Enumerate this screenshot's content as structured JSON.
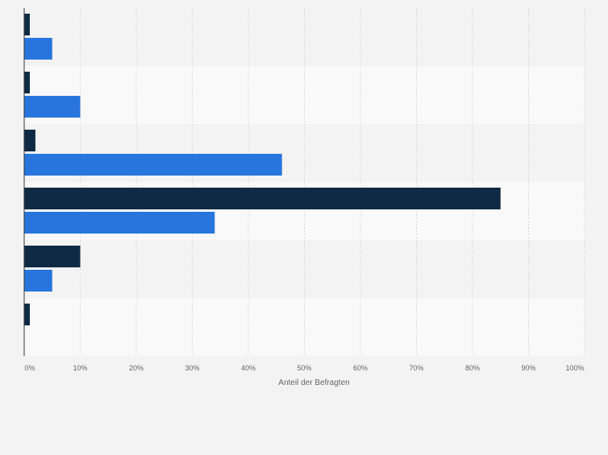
{
  "chart_data": {
    "type": "bar",
    "orientation": "horizontal",
    "categories": [
      "",
      "",
      "",
      "",
      "",
      ""
    ],
    "series": [
      {
        "color": "#0f2a44",
        "values": [
          1,
          1,
          2,
          85,
          10,
          1
        ]
      },
      {
        "color": "#2876dd",
        "values": [
          5,
          10,
          46,
          34,
          5,
          null
        ]
      }
    ],
    "xlabel": "Anteil der Befragten",
    "xlim": [
      0,
      100
    ],
    "xticks": [
      "0%",
      "10%",
      "20%",
      "30%",
      "40%",
      "50%",
      "60%",
      "70%",
      "80%",
      "90%",
      "100%"
    ],
    "grid": true,
    "legend": "none"
  },
  "colors": {
    "background": "#f3f3f3",
    "band_dark": "#f3f3f3",
    "band_light": "#f9f9f9",
    "grid": "#d8d8d8",
    "axis": "#333333",
    "tick_text": "#666666"
  }
}
